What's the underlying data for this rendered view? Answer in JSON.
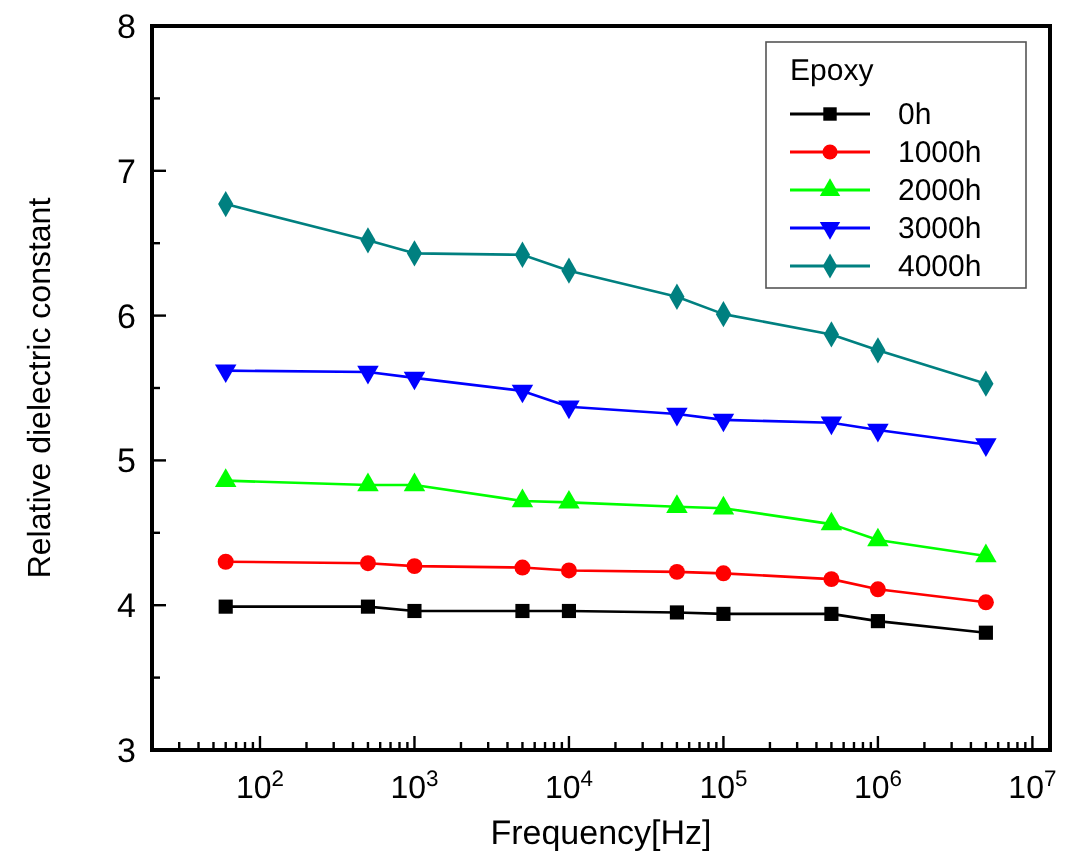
{
  "chart_data": {
    "type": "line",
    "xlabel": "Frequency[Hz]",
    "ylabel": "Relative dielectric constant",
    "legend_title": "Epoxy",
    "legend": "top right",
    "log": "x",
    "grid": false,
    "x": [
      60,
      500,
      1000,
      5000,
      10000,
      50000,
      100000,
      500000,
      1000000,
      5000000
    ],
    "xlim": [
      20,
      13000000
    ],
    "xticks": [
      {
        "value": 20,
        "label": null
      },
      {
        "value": 30,
        "label": null
      },
      {
        "value": 40,
        "label": null
      },
      {
        "value": 50,
        "label": null
      },
      {
        "value": 60,
        "label": null
      },
      {
        "value": 70,
        "label": null
      },
      {
        "value": 80,
        "label": null
      },
      {
        "value": 90,
        "label": null
      },
      {
        "value": 100,
        "label": "10$^{2}$"
      },
      {
        "value": 200,
        "label": null
      },
      {
        "value": 300,
        "label": null
      },
      {
        "value": 400,
        "label": null
      },
      {
        "value": 500,
        "label": null
      },
      {
        "value": 600,
        "label": null
      },
      {
        "value": 700,
        "label": null
      },
      {
        "value": 800,
        "label": null
      },
      {
        "value": 900,
        "label": null
      },
      {
        "value": 1000,
        "label": "10$^{3}$"
      },
      {
        "value": 2000,
        "label": null
      },
      {
        "value": 3000,
        "label": null
      },
      {
        "value": 4000,
        "label": null
      },
      {
        "value": 5000,
        "label": null
      },
      {
        "value": 6000,
        "label": null
      },
      {
        "value": 7000,
        "label": null
      },
      {
        "value": 8000,
        "label": null
      },
      {
        "value": 9000,
        "label": null
      },
      {
        "value": 10000,
        "label": "10$^{4}$"
      },
      {
        "value": 20000,
        "label": null
      },
      {
        "value": 30000,
        "label": null
      },
      {
        "value": 40000,
        "label": null
      },
      {
        "value": 50000,
        "label": null
      },
      {
        "value": 60000,
        "label": null
      },
      {
        "value": 70000,
        "label": null
      },
      {
        "value": 80000,
        "label": null
      },
      {
        "value": 90000,
        "label": null
      },
      {
        "value": 100000,
        "label": "10$^{5}$"
      },
      {
        "value": 200000,
        "label": null
      },
      {
        "value": 300000,
        "label": null
      },
      {
        "value": 400000,
        "label": null
      },
      {
        "value": 500000,
        "label": null
      },
      {
        "value": 600000,
        "label": null
      },
      {
        "value": 700000,
        "label": null
      },
      {
        "value": 800000,
        "label": null
      },
      {
        "value": 900000,
        "label": null
      },
      {
        "value": 1000000,
        "label": "10$^{6}$"
      },
      {
        "value": 2000000,
        "label": null
      },
      {
        "value": 3000000,
        "label": null
      },
      {
        "value": 4000000,
        "label": null
      },
      {
        "value": 5000000,
        "label": null
      },
      {
        "value": 6000000,
        "label": null
      },
      {
        "value": 7000000,
        "label": null
      },
      {
        "value": 8000000,
        "label": null
      },
      {
        "value": 9000000,
        "label": null
      },
      {
        "value": 10000000,
        "label": "10$^{7}$"
      }
    ],
    "ylim": [
      3,
      8
    ],
    "yticks": [
      3,
      {
        "value": 3.5,
        "label": null
      },
      4,
      {
        "value": 4.5,
        "label": null
      },
      5,
      {
        "value": 5.5,
        "label": null
      },
      6,
      {
        "value": 6.5,
        "label": null
      },
      7,
      {
        "value": 7.5,
        "label": null
      },
      8
    ],
    "series": [
      {
        "name": "0h",
        "color": "#000000",
        "marker": "square",
        "values": [
          3.99,
          3.99,
          3.96,
          3.96,
          3.96,
          3.95,
          3.94,
          3.94,
          3.89,
          3.81
        ]
      },
      {
        "name": "1000h",
        "color": "#ff0000",
        "marker": "circle",
        "values": [
          4.3,
          4.29,
          4.27,
          4.26,
          4.24,
          4.23,
          4.22,
          4.18,
          4.11,
          4.02
        ]
      },
      {
        "name": "2000h",
        "color": "#00ff00",
        "marker": "triangle",
        "values": [
          4.86,
          4.83,
          4.83,
          4.72,
          4.71,
          4.68,
          4.67,
          4.56,
          4.45,
          4.34
        ]
      },
      {
        "name": "3000h",
        "color": "#0000ff",
        "marker": "triangle-down",
        "values": [
          5.62,
          5.61,
          5.57,
          5.48,
          5.37,
          5.32,
          5.28,
          5.26,
          5.21,
          5.11
        ]
      },
      {
        "name": "4000h",
        "color": "#008080",
        "marker": "diamond",
        "values": [
          6.77,
          6.52,
          6.43,
          6.42,
          6.31,
          6.13,
          6.01,
          5.87,
          5.76,
          5.53
        ]
      }
    ]
  }
}
